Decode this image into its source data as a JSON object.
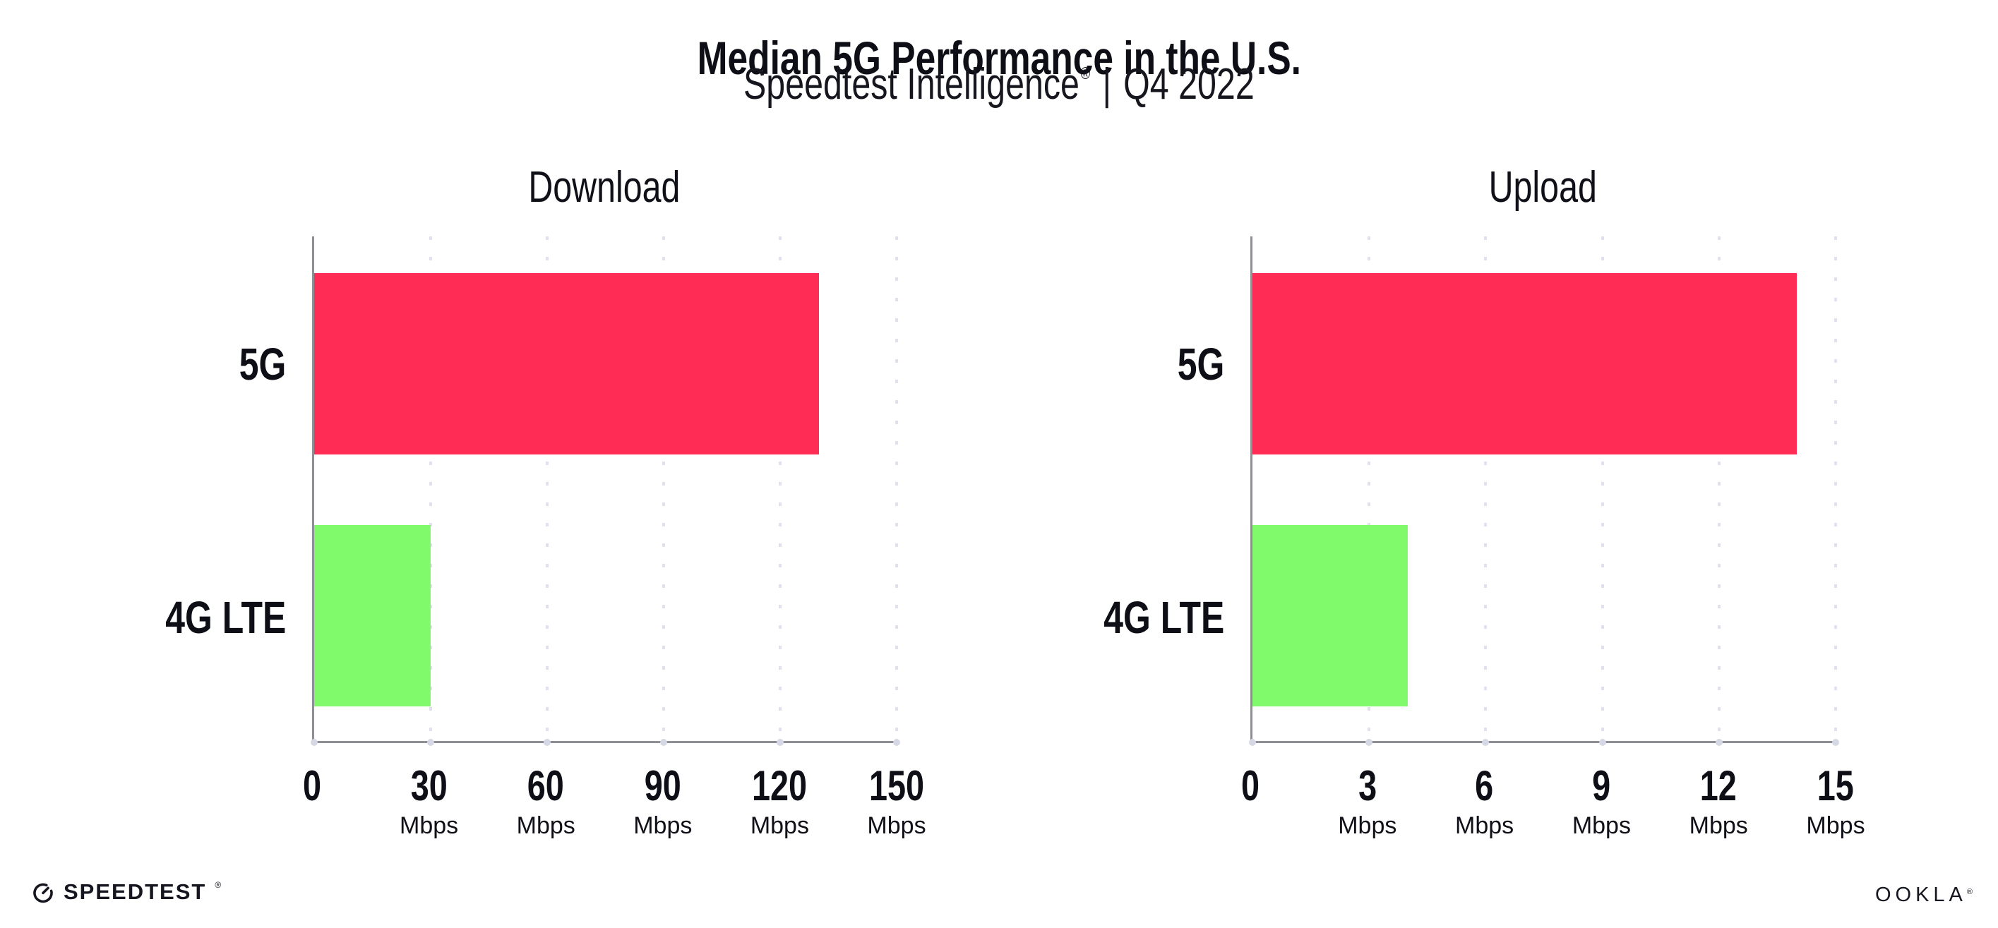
{
  "header": {
    "title": "Median 5G Performance in the U.S.",
    "subtitle_brand": "Speedtest Intelligence",
    "subtitle_reg": "®",
    "subtitle_sep": "|",
    "subtitle_period": "Q4 2022"
  },
  "colors": {
    "bar_5g": "#ff2d55",
    "bar_4g_lte": "#80fa6a",
    "axis": "#8e8e95",
    "gridline": "#e0e1ec",
    "text": "#0e0e16"
  },
  "chart_data": [
    {
      "type": "bar",
      "orientation": "horizontal",
      "title": "Download",
      "categories": [
        "5G",
        "4G LTE"
      ],
      "values": [
        130,
        30
      ],
      "unit": "Mbps",
      "xlim": [
        0,
        150
      ],
      "xticks": [
        0,
        30,
        60,
        90,
        120,
        150
      ],
      "series_colors": [
        "#ff2d55",
        "#80fa6a"
      ],
      "grid": "vertical-dotted",
      "legend": "none"
    },
    {
      "type": "bar",
      "orientation": "horizontal",
      "title": "Upload",
      "categories": [
        "5G",
        "4G LTE"
      ],
      "values": [
        14,
        4
      ],
      "unit": "Mbps",
      "xlim": [
        0,
        15
      ],
      "xticks": [
        0,
        3,
        6,
        9,
        12,
        15
      ],
      "series_colors": [
        "#ff2d55",
        "#80fa6a"
      ],
      "grid": "vertical-dotted",
      "legend": "none"
    }
  ],
  "footer": {
    "speedtest_label": "SPEEDTEST",
    "speedtest_reg": "®",
    "ookla_label": "OOKLA",
    "ookla_reg": "®"
  }
}
